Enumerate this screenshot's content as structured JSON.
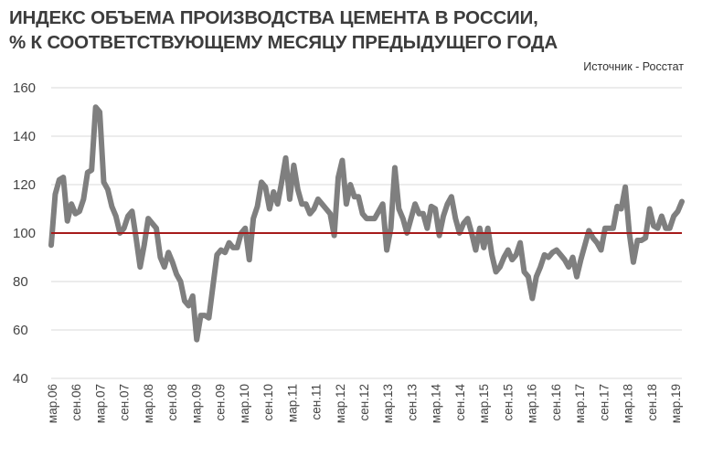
{
  "title": {
    "line1": "ИНДЕКС ОБЪЕМА ПРОИЗВОДСТВА ЦЕМЕНТА В РОССИИ,",
    "line2": "% К СООТВЕТСТВУЮЩЕМУ МЕСЯЦУ ПРЕДЫДУЩЕГО ГОДА"
  },
  "source": "Источник - Росстат",
  "chart_data": {
    "type": "line",
    "title": "ИНДЕКС ОБЪЕМА ПРОИЗВОДСТВА ЦЕМЕНТА В РОССИИ, % К СООТВЕТСТВУЮЩЕМУ МЕСЯЦУ ПРЕДЫДУЩЕГО ГОДА",
    "xlabel": "",
    "ylabel": "",
    "ylim": [
      40,
      160
    ],
    "yticks": [
      40,
      60,
      80,
      100,
      120,
      140,
      160
    ],
    "grid": "horizontal",
    "legend": "none",
    "reference_line": {
      "value": 100,
      "color": "#a61b1b"
    },
    "line_color": "#7f7f7f",
    "xtick_labels": [
      "мар.06",
      "сен.06",
      "мар.07",
      "сен.07",
      "мар.08",
      "сен.08",
      "мар.09",
      "сен.09",
      "мар.10",
      "сен.10",
      "мар.11",
      "сен.11",
      "мар.12",
      "сен.12",
      "мар.13",
      "сен.13",
      "мар.14",
      "сен.14",
      "мар.15",
      "сен.15",
      "мар.16",
      "сен.16",
      "мар.17",
      "сен.17",
      "мар.18",
      "сен.18",
      "мар.19"
    ],
    "series": [
      {
        "values": [
          95,
          116,
          122,
          123,
          105,
          112,
          108,
          109,
          114,
          125,
          126,
          152,
          150,
          121,
          118,
          111,
          107,
          100,
          102,
          107,
          109,
          98,
          86,
          95,
          106,
          104,
          102,
          90,
          86,
          92,
          88,
          83,
          80,
          72,
          70,
          74,
          56,
          66,
          66,
          65,
          78,
          91,
          93,
          92,
          96,
          94,
          94,
          100,
          102,
          89,
          106,
          111,
          121,
          119,
          110,
          117,
          112,
          121,
          131,
          114,
          128,
          118,
          112,
          112,
          108,
          110,
          114,
          112,
          110,
          108,
          99,
          123,
          130,
          112,
          120,
          115,
          115,
          108,
          106,
          106,
          106,
          109,
          112,
          93,
          102,
          127,
          110,
          106,
          100,
          106,
          112,
          108,
          108,
          102,
          111,
          110,
          99,
          107,
          112,
          115,
          106,
          100,
          104,
          106,
          100,
          93,
          102,
          94,
          102,
          91,
          84,
          86,
          90,
          93,
          89,
          91,
          96,
          84,
          82,
          73,
          82,
          86,
          91,
          90,
          92,
          93,
          91,
          89,
          86,
          90,
          82,
          89,
          95,
          101,
          98,
          96,
          93,
          102,
          102,
          102,
          111,
          110,
          119,
          100,
          88,
          97,
          97,
          98,
          110,
          103,
          102,
          107,
          102,
          102,
          107,
          109,
          113
        ]
      }
    ]
  }
}
